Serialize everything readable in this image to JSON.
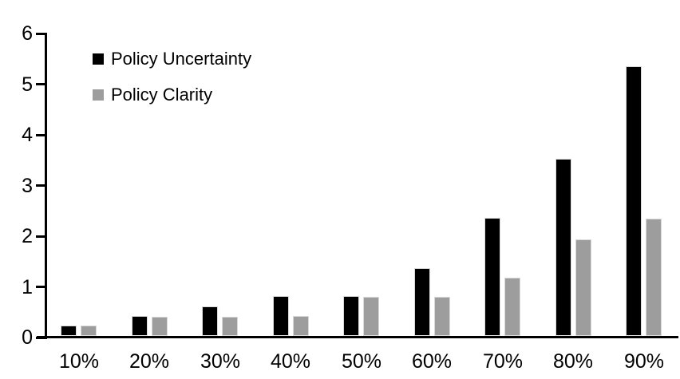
{
  "chart_data": {
    "type": "bar",
    "title": "",
    "xlabel": "",
    "ylabel": "",
    "categories": [
      "10%",
      "20%",
      "30%",
      "40%",
      "50%",
      "60%",
      "70%",
      "80%",
      "90%"
    ],
    "series": [
      {
        "name": "Policy Uncertainty",
        "color": "#000000",
        "values": [
          0.2,
          0.4,
          0.58,
          0.78,
          0.79,
          1.34,
          2.33,
          3.5,
          5.32
        ]
      },
      {
        "name": "Policy Clarity",
        "color": "#9d9d9d",
        "values": [
          0.2,
          0.38,
          0.38,
          0.39,
          0.77,
          0.77,
          1.15,
          1.9,
          2.31
        ]
      }
    ],
    "ylim": [
      0,
      6
    ],
    "yticks": [
      "0",
      "1",
      "2",
      "3",
      "4",
      "5",
      "6"
    ],
    "grid": false,
    "legend_position": "top-left-inside",
    "axis_color": "#000000",
    "background_color": "#ffffff"
  }
}
